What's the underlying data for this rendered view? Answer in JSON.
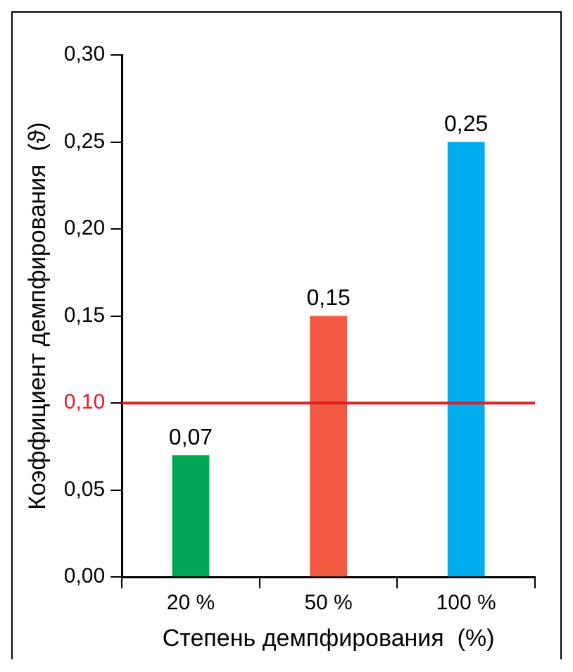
{
  "chart_data": {
    "type": "bar",
    "xlabel": "Степень демпфирования  (%)",
    "ylabel": "Коэффициент демпфирования  (ϑ)",
    "categories": [
      "20 %",
      "50 %",
      "100 %"
    ],
    "values": [
      0.07,
      0.15,
      0.25
    ],
    "colors": [
      "#00a651",
      "#f15a40",
      "#00aeef"
    ],
    "value_labels": [
      "0,07",
      "0,15",
      "0,25"
    ],
    "ylim": [
      0,
      0.3
    ],
    "yticks": [
      {
        "value": 0,
        "label": "0,00"
      },
      {
        "value": 0.05,
        "label": "0,05"
      },
      {
        "value": 0.1,
        "label": "0,10"
      },
      {
        "value": 0.15,
        "label": "0,15"
      },
      {
        "value": 0.2,
        "label": "0,20"
      },
      {
        "value": 0.25,
        "label": "0,25"
      },
      {
        "value": 0.3,
        "label": "0,30"
      }
    ],
    "ref_lines": [
      {
        "axis": "y",
        "value": 0.1,
        "color": "#e31e24"
      }
    ],
    "grid": false,
    "legend": false
  }
}
